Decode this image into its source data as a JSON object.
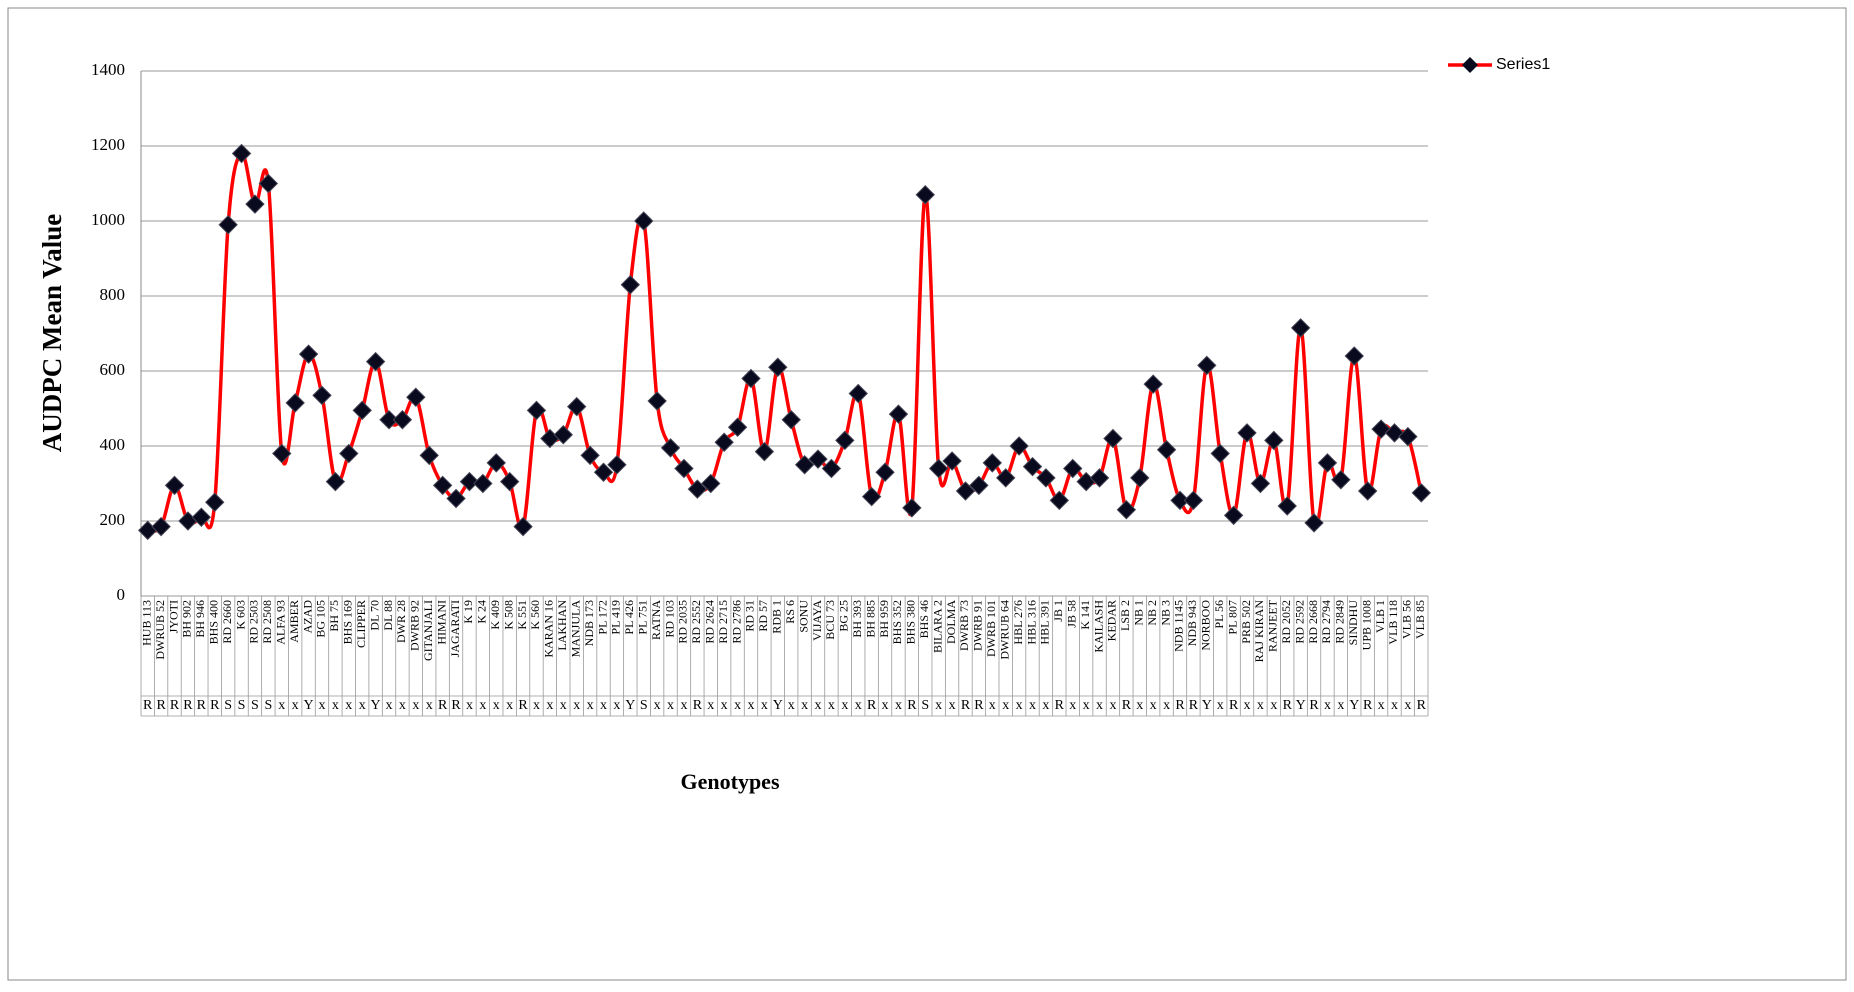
{
  "chart_data": {
    "type": "line",
    "y_axis_label": "AUDPC Mean Value",
    "x_axis_label": "Genotypes",
    "categories": [
      "HUB 113",
      "DWRUB 52",
      "JYOTI",
      "BH 902",
      "BH 946",
      "BHS 400",
      "RD 2660",
      "K 603",
      "RD 2503",
      "RD 2508",
      "ALFA 93",
      "AMBER",
      "AZAD",
      "BG 105",
      "BH 75",
      "BHS 169",
      "CLIPPER",
      "DL 70",
      "DL 88",
      "DWR 28",
      "DWRB 92",
      "GITANJALI",
      "HIMANI",
      "JAGARATI",
      "K 19",
      "K 24",
      "K 409",
      "K 508",
      "K 551",
      "K 560",
      "KARAN 16",
      "LAKHAN",
      "MANJULA",
      "NDB 173",
      "PL 172",
      "PL 419",
      "PL 426",
      "PL 751",
      "RATNA",
      "RD 103",
      "RD 2035",
      "RD 2552",
      "RD 2624",
      "RD 2715",
      "RD 2786",
      "RD 31",
      "RD 57",
      "RDB 1",
      "RS 6",
      "SONU",
      "VIJAYA",
      "BCU 73",
      "BG 25",
      "BH 393",
      "BH 885",
      "BH 959",
      "BHS 352",
      "BHS 380",
      "BHS 46",
      "BILARA 2",
      "DOLMA",
      "DWRB 73",
      "DWRB 91",
      "DWRB 101",
      "DWRUB 64",
      "HBL 276",
      "HBL 316",
      "HBL 391",
      "JB 1",
      "JB 58",
      "K 141",
      "KAILASH",
      "KEDAR",
      "LSB 2",
      "NB 1",
      "NB 2",
      "NB 3",
      "NDB 1145",
      "NDB 943",
      "NORBOO",
      "PL 56",
      "PL 807",
      "PRB 502",
      "RAJ KIRAN",
      "RANJEET",
      "RD 2052",
      "RD 2592",
      "RD 2668",
      "RD 2794",
      "RD 2849",
      "SINDHU",
      "UPB 1008",
      "VLB 1",
      "VLB 118",
      "VLB 56",
      "VLB 85"
    ],
    "category_codes": [
      "R",
      "R",
      "R",
      "R",
      "R",
      "R",
      "S",
      "S",
      "S",
      "S",
      "x",
      "x",
      "Y",
      "x",
      "x",
      "x",
      "x",
      "Y",
      "x",
      "x",
      "x",
      "x",
      "R",
      "R",
      "x",
      "x",
      "x",
      "x",
      "R",
      "x",
      "x",
      "x",
      "x",
      "x",
      "x",
      "x",
      "Y",
      "S",
      "x",
      "x",
      "x",
      "R",
      "x",
      "x",
      "x",
      "x",
      "x",
      "Y",
      "x",
      "x",
      "x",
      "x",
      "x",
      "x",
      "R",
      "x",
      "x",
      "R",
      "S",
      "x",
      "x",
      "R",
      "R",
      "x",
      "x",
      "x",
      "x",
      "x",
      "R",
      "x",
      "x",
      "x",
      "x",
      "R",
      "x",
      "x",
      "x",
      "R",
      "R",
      "Y",
      "x",
      "R",
      "x",
      "x",
      "x",
      "R",
      "Y",
      "R",
      "x",
      "x",
      "Y",
      "R",
      "x",
      "x",
      "x",
      "R"
    ],
    "series": [
      {
        "name": "Series1",
        "color": "#ff0000",
        "values": [
          175,
          185,
          295,
          200,
          210,
          250,
          990,
          1180,
          1045,
          1100,
          380,
          515,
          645,
          535,
          305,
          380,
          495,
          625,
          470,
          470,
          530,
          375,
          295,
          260,
          305,
          300,
          355,
          305,
          185,
          495,
          420,
          430,
          505,
          375,
          330,
          350,
          830,
          1000,
          520,
          395,
          340,
          285,
          300,
          410,
          450,
          580,
          385,
          610,
          470,
          350,
          365,
          340,
          415,
          540,
          265,
          330,
          485,
          235,
          1070,
          340,
          360,
          280,
          295,
          355,
          315,
          400,
          345,
          315,
          255,
          340,
          305,
          315,
          420,
          230,
          315,
          565,
          390,
          255,
          255,
          615,
          380,
          215,
          435,
          300,
          415,
          240,
          715,
          195,
          355,
          310,
          640,
          280,
          445,
          435,
          425,
          275
        ]
      }
    ],
    "ylim": [
      0,
      1400
    ],
    "yticks": [
      0,
      200,
      400,
      600,
      800,
      1000,
      1200,
      1400
    ],
    "grid": true,
    "legend": "top-right",
    "marker": "diamond"
  }
}
